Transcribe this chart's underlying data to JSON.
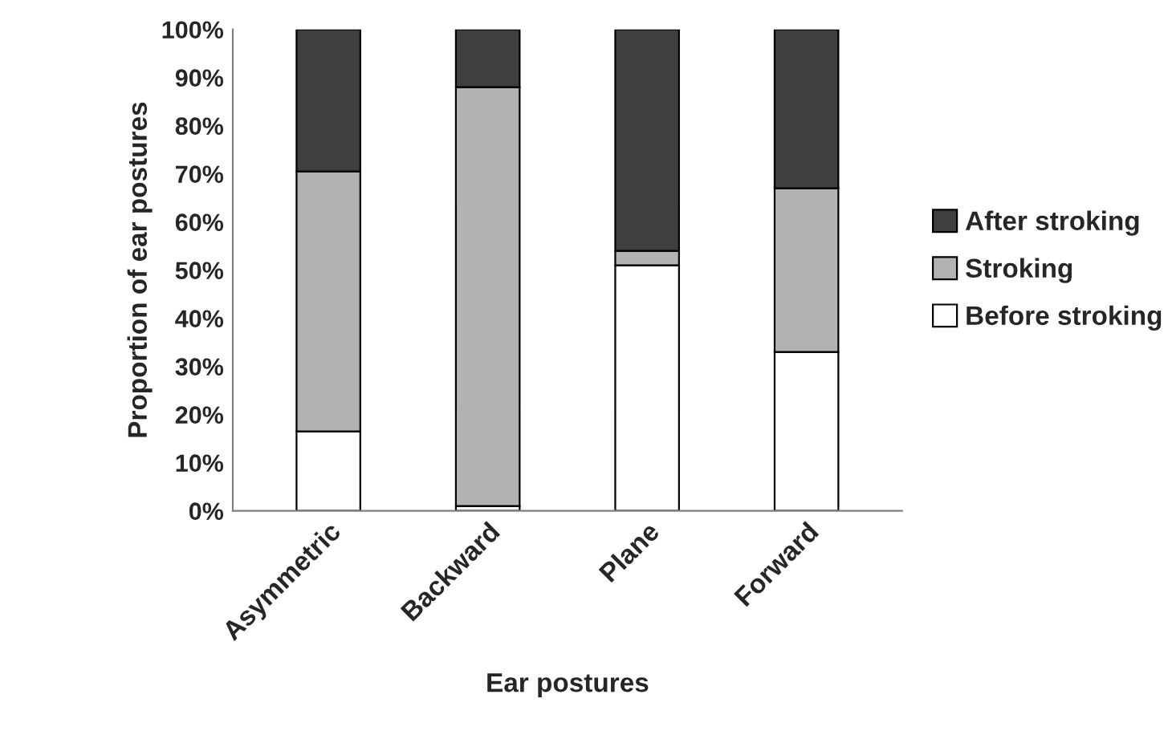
{
  "chart_data": {
    "type": "bar",
    "stacked": true,
    "xlabel": "Ear postures",
    "ylabel": "Proportion of ear postures",
    "categories": [
      "Asymmetric",
      "Backward",
      "Plane",
      "Forward"
    ],
    "series": [
      {
        "name": "Before stroking",
        "color": "#ffffff",
        "values": [
          16.5,
          1,
          51,
          33
        ]
      },
      {
        "name": "Stroking",
        "color": "#b2b2b2",
        "values": [
          54,
          87,
          3,
          34
        ]
      },
      {
        "name": "After stroking",
        "color": "#3f3f3f",
        "values": [
          29.5,
          12,
          46,
          33
        ]
      }
    ],
    "ylim": [
      0,
      100
    ],
    "yticks": [
      {
        "value": 0,
        "label": "0%"
      },
      {
        "value": 10,
        "label": "10%"
      },
      {
        "value": 20,
        "label": "20%"
      },
      {
        "value": 30,
        "label": "30%"
      },
      {
        "value": 40,
        "label": "40%"
      },
      {
        "value": 50,
        "label": "50%"
      },
      {
        "value": 60,
        "label": "60%"
      },
      {
        "value": 70,
        "label": "70%"
      },
      {
        "value": 80,
        "label": "80%"
      },
      {
        "value": 90,
        "label": "90%"
      },
      {
        "value": 100,
        "label": "100%"
      }
    ],
    "grid": false,
    "legend": "right"
  }
}
